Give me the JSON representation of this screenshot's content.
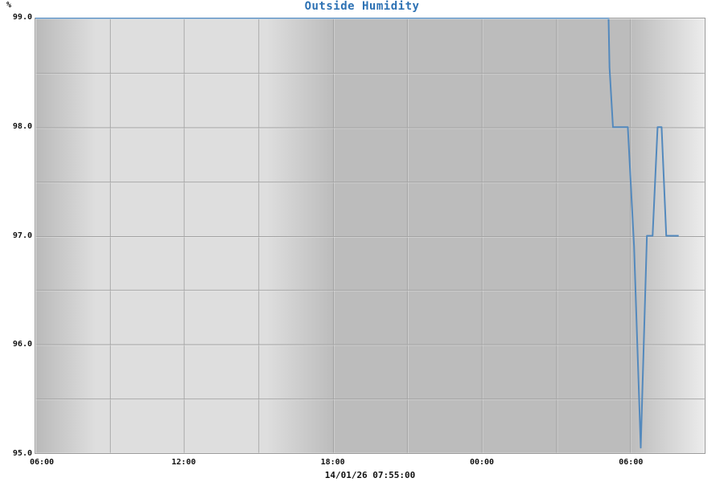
{
  "chart_data": {
    "type": "line",
    "title": "Outside Humidity",
    "unit_label": "%",
    "footer_timestamp": "14/01/26 07:55:00",
    "x_axis": {
      "range_hours": [
        0,
        27
      ],
      "gridline_step_hours": 3,
      "tick_labels": [
        "06:00",
        "12:00",
        "18:00",
        "00:00",
        "06:00"
      ],
      "tick_positions_hours": [
        0,
        6,
        12,
        18,
        24
      ]
    },
    "y_axis": {
      "range": [
        95.0,
        99.0
      ],
      "gridline_step": 0.5,
      "tick_labels": [
        "99.0",
        "98.0",
        "97.0",
        "96.0",
        "95.0"
      ],
      "tick_values": [
        99.0,
        98.0,
        97.0,
        96.0,
        95.0
      ]
    },
    "grid": true,
    "legend": "none",
    "series": [
      {
        "name": "Outside Humidity",
        "color": "#5389bd",
        "points_hours_value": [
          [
            0.0,
            99.0
          ],
          [
            23.12,
            99.0
          ],
          [
            23.16,
            98.55
          ],
          [
            23.3,
            98.0
          ],
          [
            23.9,
            98.0
          ],
          [
            24.15,
            96.9
          ],
          [
            24.42,
            95.05
          ],
          [
            24.67,
            97.0
          ],
          [
            24.9,
            97.0
          ],
          [
            25.1,
            98.0
          ],
          [
            25.26,
            98.0
          ],
          [
            25.45,
            97.0
          ],
          [
            25.95,
            97.0
          ]
        ]
      }
    ],
    "background_bands": [
      {
        "pos": 0.0,
        "color": "#b9b9b9"
      },
      {
        "pos": 0.09,
        "color": "#dedede"
      },
      {
        "pos": 0.345,
        "color": "#dedede"
      },
      {
        "pos": 0.445,
        "color": "#bcbcbc"
      },
      {
        "pos": 0.89,
        "color": "#bcbcbc"
      },
      {
        "pos": 1.0,
        "color": "#ececec"
      }
    ],
    "colors": {
      "title": "#2e72b4",
      "line": "#5389bd",
      "grid": "#a2a2a2",
      "grid_highlight": "rgba(255,255,255,0.3)",
      "frame": "#9a9a9a",
      "text": "#111111",
      "page_background": "#ffffff"
    }
  }
}
